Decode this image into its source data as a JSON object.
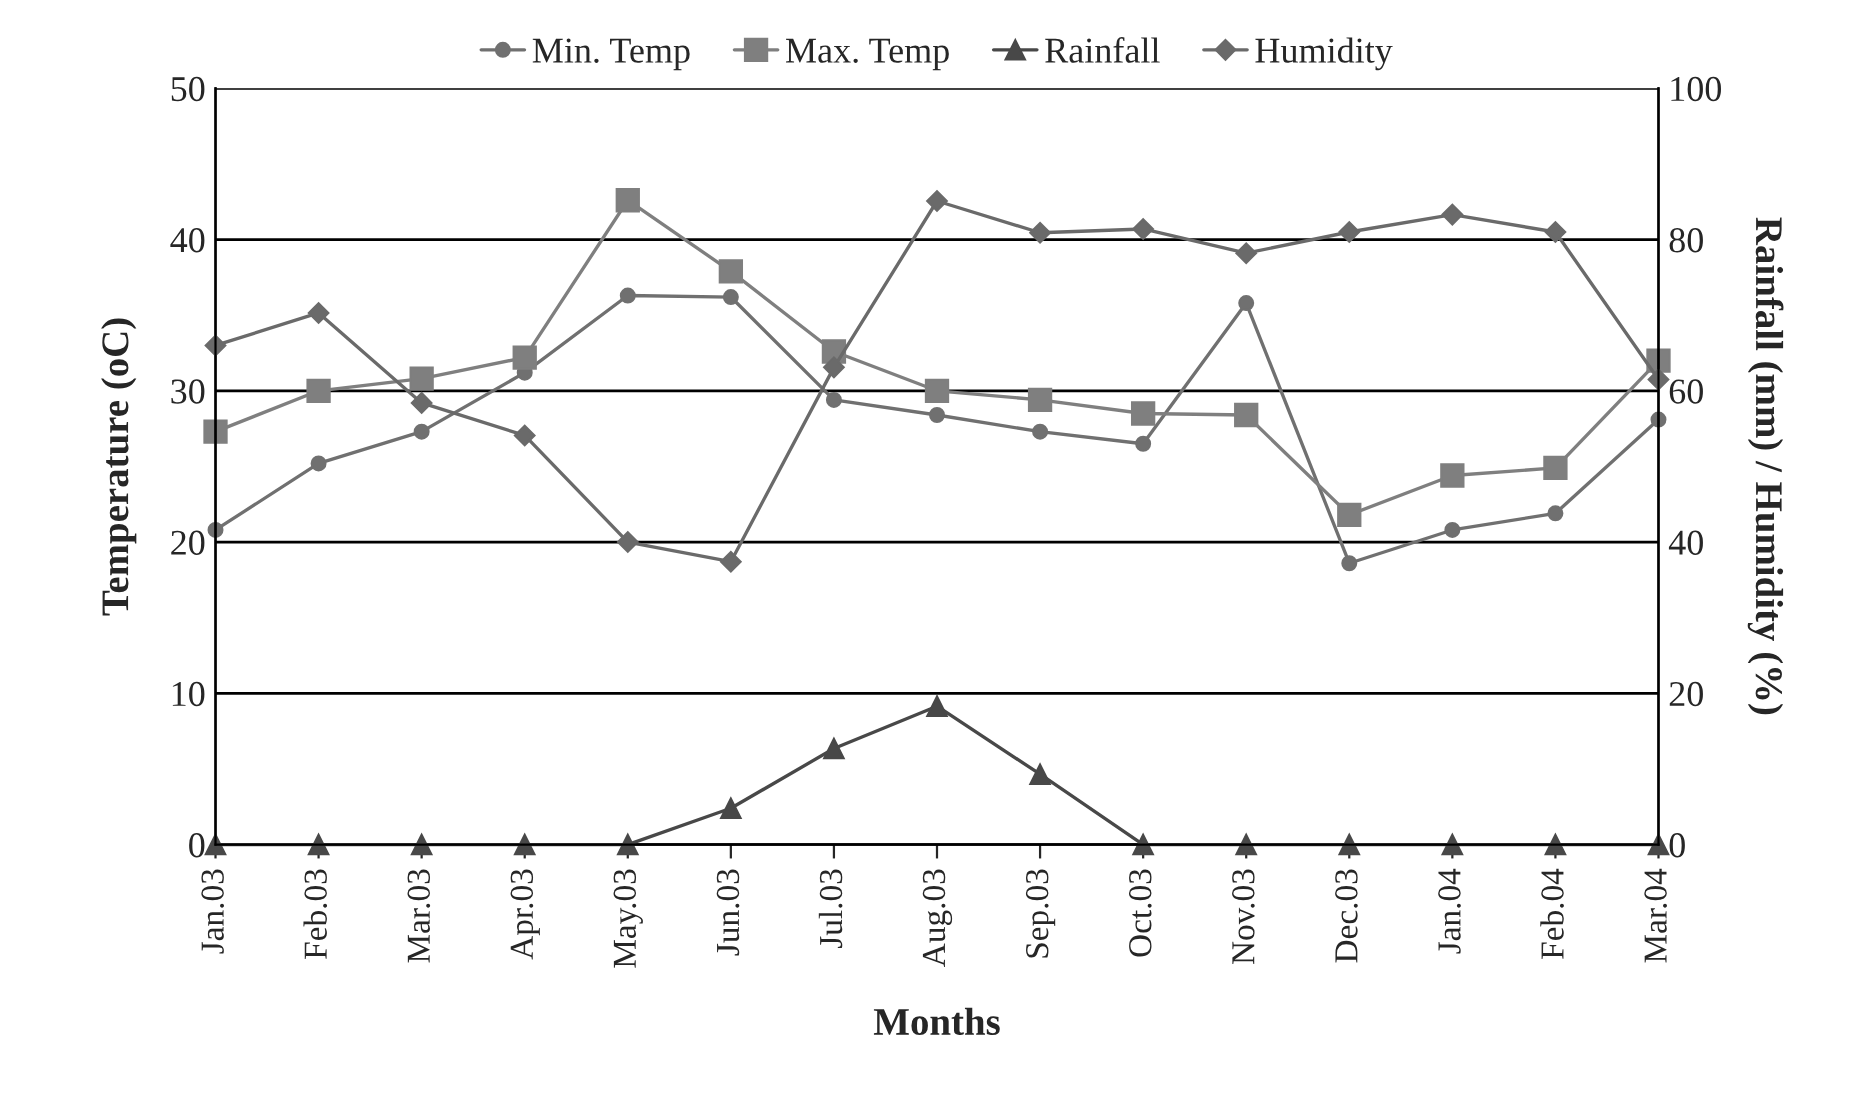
{
  "chart_data": {
    "type": "line",
    "xlabel": "Months",
    "ylabel": "Temperature (oC)",
    "y2label": "Rainfall (mm) / Humidity (%)",
    "categories": [
      "Jan.03",
      "Feb.03",
      "Mar.03",
      "Apr.03",
      "May.03",
      "Jun.03",
      "Jul.03",
      "Aug.03",
      "Sep.03",
      "Oct.03",
      "Nov.03",
      "Dec.03",
      "Jan.04",
      "Feb.04",
      "Mar.04"
    ],
    "series": [
      {
        "name": "Min. Temp",
        "color": "#707070",
        "marker": "circle",
        "values": [
          20.8,
          25.2,
          27.3,
          31.2,
          36.3,
          36.2,
          29.4,
          28.4,
          27.3,
          26.5,
          35.8,
          18.6,
          20.8,
          21.9,
          28.1
        ]
      },
      {
        "name": "Max. Temp",
        "color": "#7f7f7f",
        "marker": "square",
        "values": [
          27.3,
          30,
          30.8,
          32.2,
          42.6,
          37.9,
          32.6,
          30,
          29.4,
          28.5,
          28.4,
          21.8,
          24.4,
          24.9,
          32
        ]
      },
      {
        "name": "Rainfall",
        "color": "#484848",
        "marker": "triangle",
        "axis": "y2",
        "values": [
          0,
          0,
          0,
          0,
          0,
          4.8,
          12.7,
          18.3,
          9.3,
          0,
          0,
          0,
          0,
          0,
          0
        ]
      },
      {
        "name": "Humidity",
        "color": "#6a6a6a",
        "marker": "diamond",
        "axis": "y2",
        "values": [
          66,
          70.3,
          58.4,
          54.1,
          40,
          37.4,
          63.1,
          85.1,
          80.9,
          81.4,
          78.2,
          81,
          83.3,
          81,
          61.5
        ]
      }
    ],
    "ylim": [
      0,
      50
    ],
    "yticks": [
      0,
      10,
      20,
      30,
      40,
      50
    ],
    "y2lim": [
      0,
      100
    ],
    "y2ticks": [
      0,
      20,
      40,
      60,
      80,
      100
    ],
    "grid": "y",
    "legend": "top"
  }
}
